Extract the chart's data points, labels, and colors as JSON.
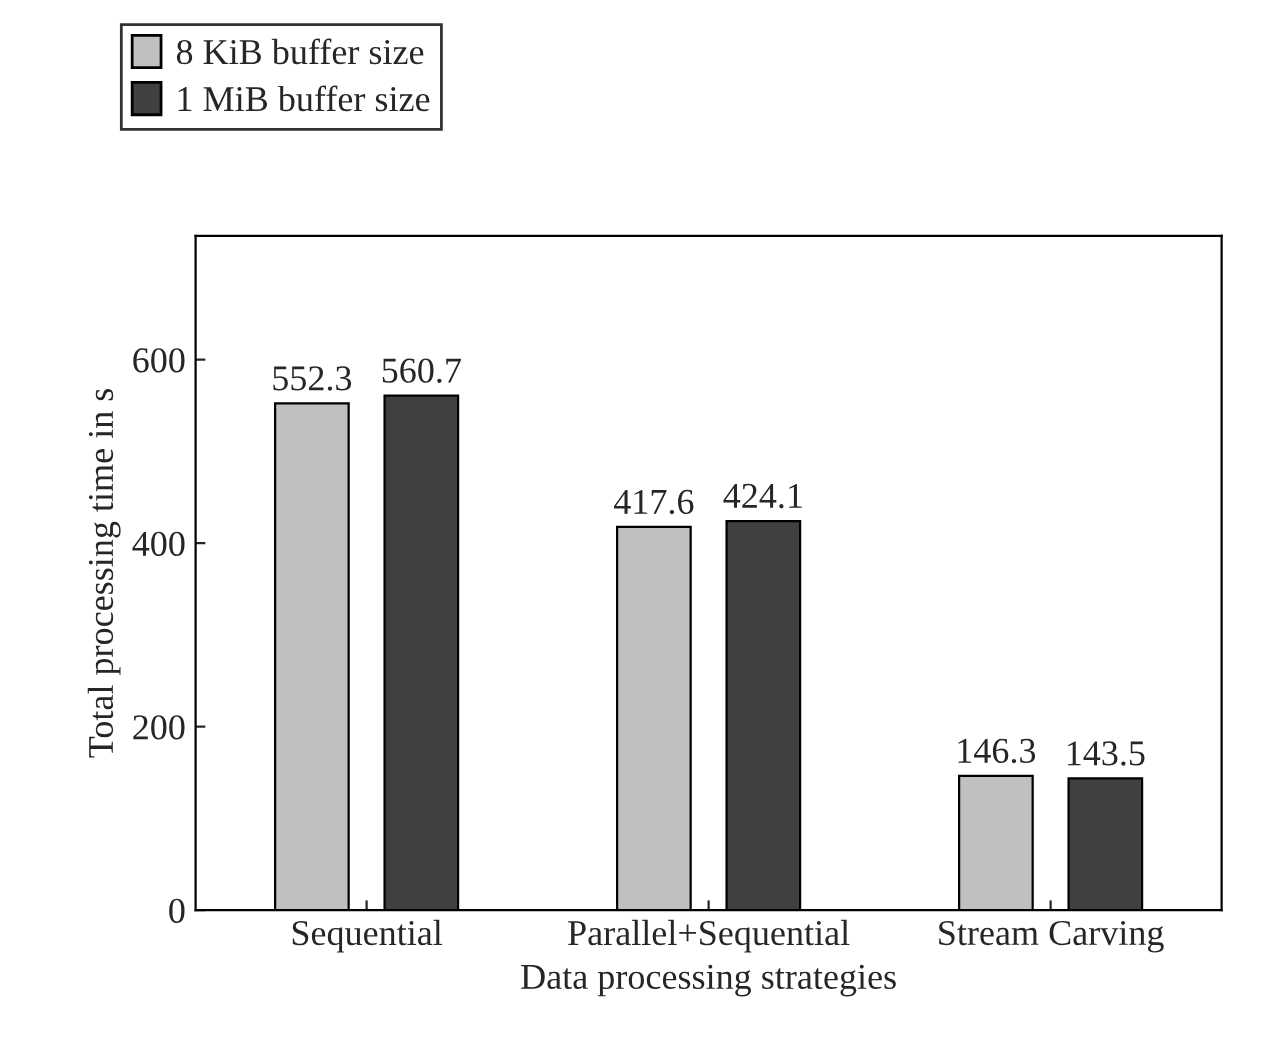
{
  "chart_data": {
    "type": "bar",
    "xlabel": "Data processing strategies",
    "ylabel": "Total processing time in s",
    "categories": [
      "Sequential",
      "Parallel+Sequential",
      "Stream Carving"
    ],
    "series": [
      {
        "name": "8 KiB buffer size",
        "color": "#c0c0c0",
        "values": [
          552.3,
          417.6,
          146.3
        ]
      },
      {
        "name": "1 MiB buffer size",
        "color": "#404040",
        "values": [
          560.7,
          424.1,
          143.5
        ]
      }
    ],
    "ylim": [
      0,
      735
    ],
    "yticks": [
      0,
      200,
      400,
      600
    ],
    "data_labels": true,
    "legend": "top left",
    "grid": false
  }
}
